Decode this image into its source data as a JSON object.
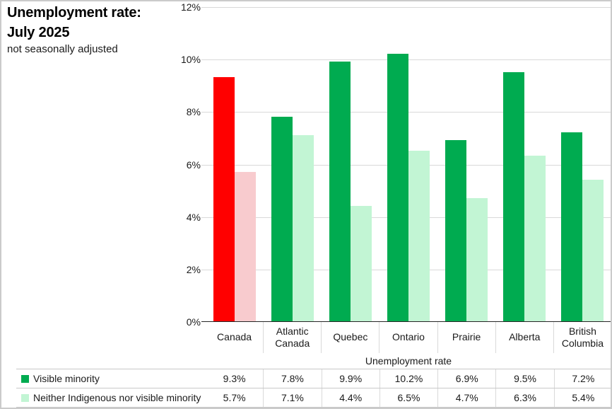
{
  "header": {
    "title_line1": "Unemployment rate:",
    "title_line2": "July 2025",
    "subtitle": "not seasonally adjusted"
  },
  "chart_data": {
    "type": "bar",
    "title": "Unemployment rate: July 2025",
    "subtitle": "not seasonally adjusted",
    "categories": [
      "Canada",
      "Atlantic Canada",
      "Quebec",
      "Ontario",
      "Prairie",
      "Alberta",
      "British Columbia"
    ],
    "series": [
      {
        "name": "Visible minority",
        "values": [
          9.3,
          7.8,
          9.9,
          10.2,
          6.9,
          9.5,
          7.2
        ],
        "labels": [
          "9.3%",
          "7.8%",
          "9.9%",
          "10.2%",
          "6.9%",
          "9.5%",
          "7.2%"
        ],
        "color": "#00AB50",
        "canada_color": "#FF0000"
      },
      {
        "name": "Neither Indigenous nor visible minority",
        "values": [
          5.7,
          7.1,
          4.4,
          6.5,
          4.7,
          6.3,
          5.4
        ],
        "labels": [
          "5.7%",
          "7.1%",
          "4.4%",
          "6.5%",
          "4.7%",
          "6.3%",
          "5.4%"
        ],
        "color": "#C2F5D4",
        "canada_color": "#F8CBCE"
      }
    ],
    "xlabel": "Unemployment rate",
    "ylabel": "",
    "ylim": [
      0,
      12
    ],
    "ytick_step": 2,
    "ytick_labels": [
      "0%",
      "2%",
      "4%",
      "6%",
      "8%",
      "10%",
      "12%"
    ],
    "grid": true,
    "legend_position": "table-bottom",
    "colors": {
      "gridline": "#D9D9D9",
      "axis_line": "#262626",
      "table_line": "#C8C8C8",
      "frame_border": "#CBCBCB"
    }
  }
}
